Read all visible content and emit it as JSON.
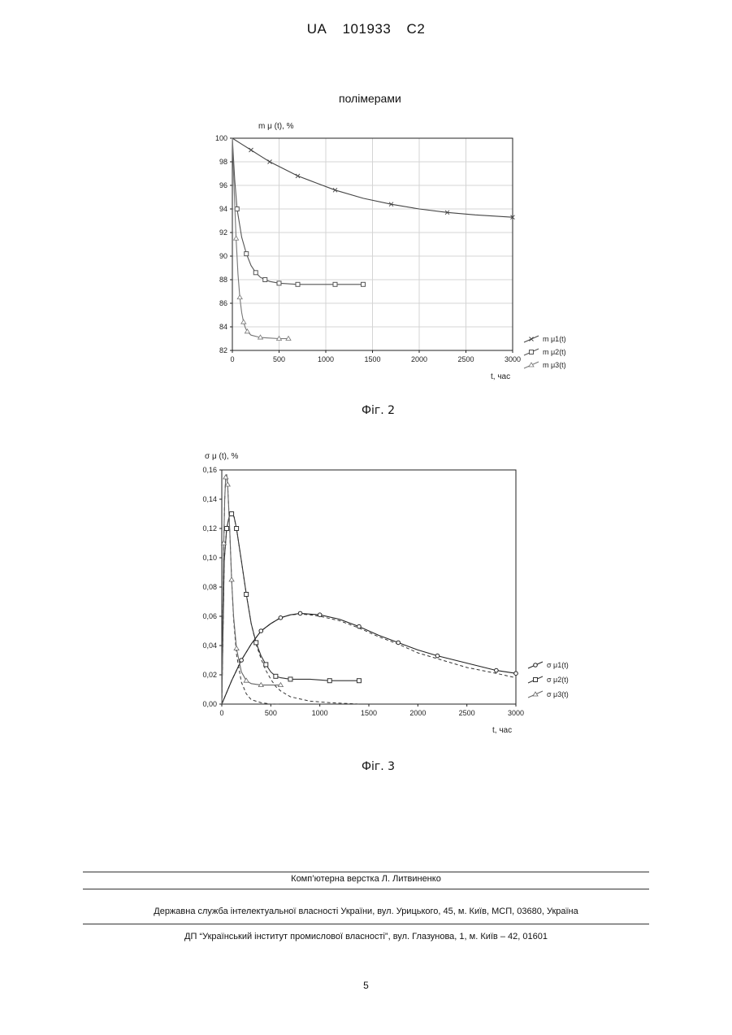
{
  "header": {
    "office": "UA",
    "number": "101933",
    "kind": "C2"
  },
  "fig2": {
    "title_text": "полімерами",
    "caption": "Фіг. 2",
    "chart_data": {
      "type": "line",
      "ylabel": "m μ (t), %",
      "xlabel": "t, час",
      "xlim": [
        0,
        3000
      ],
      "ylim": [
        82,
        100
      ],
      "xticks": [
        "0",
        "500",
        "1000",
        "1500",
        "2000",
        "2500",
        "3000"
      ],
      "yticks": [
        "82",
        "84",
        "86",
        "88",
        "90",
        "92",
        "94",
        "96",
        "98",
        "100"
      ],
      "grid": true,
      "legend_position": "right",
      "series": [
        {
          "name": "m μ1(t)",
          "marker": "x",
          "color": "#444444",
          "x": [
            0,
            100,
            200,
            300,
            400,
            500,
            700,
            900,
            1100,
            1400,
            1700,
            2000,
            2300,
            2600,
            3000
          ],
          "y": [
            100,
            99.5,
            99.0,
            98.5,
            98.0,
            97.6,
            96.8,
            96.2,
            95.6,
            94.9,
            94.4,
            94.0,
            93.7,
            93.5,
            93.3
          ]
        },
        {
          "name": "m μ2(t)",
          "marker": "square",
          "color": "#555555",
          "x": [
            0,
            25,
            50,
            100,
            150,
            200,
            250,
            300,
            350,
            400,
            500,
            600,
            700,
            900,
            1100,
            1400
          ],
          "y": [
            100,
            96.5,
            94.0,
            91.6,
            90.2,
            89.2,
            88.6,
            88.2,
            88.0,
            87.85,
            87.7,
            87.65,
            87.6,
            87.6,
            87.6,
            87.6
          ]
        },
        {
          "name": "m μ3(t)",
          "marker": "triangle",
          "color": "#777777",
          "x": [
            0,
            20,
            40,
            60,
            80,
            100,
            120,
            140,
            160,
            200,
            300,
            400,
            500,
            600
          ],
          "y": [
            100,
            95.5,
            91.5,
            88.5,
            86.5,
            85.2,
            84.4,
            83.9,
            83.6,
            83.3,
            83.1,
            83.05,
            83.0,
            83.0
          ]
        }
      ]
    }
  },
  "fig3": {
    "caption": "Фіг. 3",
    "chart_data": {
      "type": "line",
      "ylabel": "σ μ (t), %",
      "xlabel": "t, час",
      "xlim": [
        0,
        3000
      ],
      "ylim": [
        0,
        0.16
      ],
      "xticks": [
        "0",
        "500",
        "1000",
        "1500",
        "2000",
        "2500",
        "3000"
      ],
      "yticks": [
        "0,00",
        "0,02",
        "0,04",
        "0,06",
        "0,08",
        "0,10",
        "0,12",
        "0,14",
        "0,16"
      ],
      "grid": false,
      "legend_position": "right",
      "series": [
        {
          "name": "σ μ1(t)",
          "marker": "circle",
          "color": "#222222",
          "x": [
            0,
            100,
            200,
            300,
            400,
            500,
            600,
            700,
            800,
            900,
            1000,
            1200,
            1400,
            1600,
            1800,
            2000,
            2200,
            2500,
            2800,
            3000
          ],
          "y": [
            0,
            0.016,
            0.03,
            0.041,
            0.05,
            0.055,
            0.059,
            0.061,
            0.062,
            0.0615,
            0.061,
            0.058,
            0.053,
            0.047,
            0.042,
            0.037,
            0.033,
            0.028,
            0.023,
            0.021
          ],
          "fitted": [
            0,
            0.016,
            0.03,
            0.041,
            0.05,
            0.055,
            0.059,
            0.061,
            0.0615,
            0.061,
            0.06,
            0.057,
            0.052,
            0.046,
            0.041,
            0.035,
            0.031,
            0.025,
            0.021,
            0.018
          ]
        },
        {
          "name": "σ μ2(t)",
          "marker": "square",
          "color": "#333333",
          "x": [
            0,
            25,
            50,
            75,
            100,
            125,
            150,
            200,
            250,
            300,
            350,
            400,
            450,
            500,
            550,
            600,
            700,
            900,
            1100,
            1400
          ],
          "y": [
            0,
            0.098,
            0.12,
            0.128,
            0.13,
            0.128,
            0.12,
            0.098,
            0.075,
            0.055,
            0.042,
            0.033,
            0.027,
            0.022,
            0.019,
            0.018,
            0.017,
            0.017,
            0.016,
            0.016
          ],
          "fitted": [
            0,
            0.098,
            0.12,
            0.128,
            0.13,
            0.128,
            0.12,
            0.098,
            0.075,
            0.055,
            0.041,
            0.031,
            0.023,
            0.017,
            0.012,
            0.009,
            0.005,
            0.002,
            0.001,
            0.0
          ]
        },
        {
          "name": "σ μ3(t)",
          "marker": "triangle",
          "color": "#666666",
          "x": [
            0,
            10,
            20,
            30,
            40,
            50,
            60,
            80,
            100,
            120,
            150,
            200,
            250,
            300,
            400,
            500,
            600
          ],
          "y": [
            0,
            0.06,
            0.11,
            0.14,
            0.155,
            0.157,
            0.15,
            0.12,
            0.085,
            0.06,
            0.038,
            0.022,
            0.016,
            0.014,
            0.013,
            0.013,
            0.013
          ],
          "fitted": [
            0,
            0.06,
            0.11,
            0.14,
            0.155,
            0.157,
            0.15,
            0.12,
            0.085,
            0.058,
            0.034,
            0.015,
            0.007,
            0.003,
            0.001,
            0.0,
            0.0
          ]
        }
      ]
    }
  },
  "footer": {
    "line1": "Комп’ютерна верстка Л. Литвиненко",
    "line2": "Державна служба інтелектуальної власності України, вул. Урицького, 45, м. Київ, МСП, 03680, Україна",
    "line3": "ДП “Український інститут промислової власності”, вул. Глазунова, 1, м. Київ – 42, 01601"
  },
  "page_number": "5"
}
